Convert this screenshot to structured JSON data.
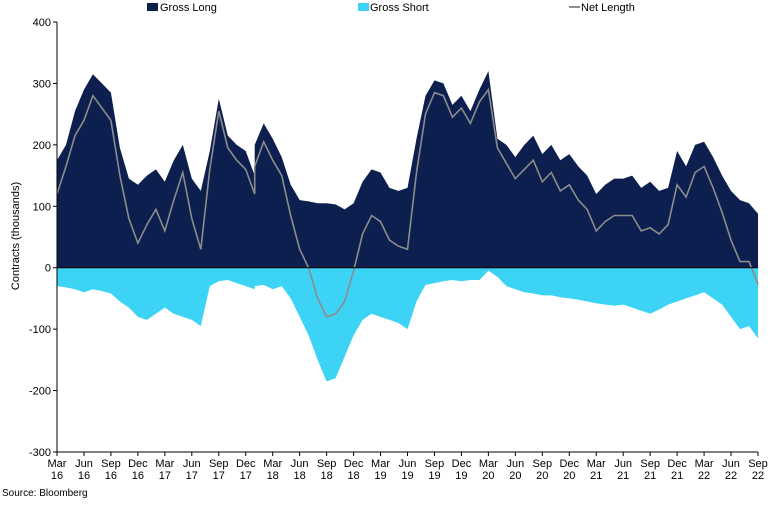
{
  "chart_data": {
    "type": "area",
    "ylabel": "Contracts (thousands)",
    "ylim": [
      -300,
      400
    ],
    "yticks": [
      -300,
      -200,
      -100,
      0,
      100,
      200,
      300,
      400
    ],
    "xticks": [
      {
        "line1": "Mar",
        "line2": "16"
      },
      {
        "line1": "Jun",
        "line2": "16"
      },
      {
        "line1": "Sep",
        "line2": "16"
      },
      {
        "line1": "Dec",
        "line2": "16"
      },
      {
        "line1": "Mar",
        "line2": "17"
      },
      {
        "line1": "Jun",
        "line2": "17"
      },
      {
        "line1": "Sep",
        "line2": "17"
      },
      {
        "line1": "Dec",
        "line2": "17"
      },
      {
        "line1": "Mar",
        "line2": "18"
      },
      {
        "line1": "Jun",
        "line2": "18"
      },
      {
        "line1": "Sep",
        "line2": "18"
      },
      {
        "line1": "Dec",
        "line2": "18"
      },
      {
        "line1": "Mar",
        "line2": "19"
      },
      {
        "line1": "Jun",
        "line2": "19"
      },
      {
        "line1": "Sep",
        "line2": "19"
      },
      {
        "line1": "Dec",
        "line2": "19"
      },
      {
        "line1": "Mar",
        "line2": "20"
      },
      {
        "line1": "Jun",
        "line2": "20"
      },
      {
        "line1": "Sep",
        "line2": "20"
      },
      {
        "line1": "Dec",
        "line2": "20"
      },
      {
        "line1": "Mar",
        "line2": "21"
      },
      {
        "line1": "Jun",
        "line2": "21"
      },
      {
        "line1": "Sep",
        "line2": "21"
      },
      {
        "line1": "Dec",
        "line2": "21"
      },
      {
        "line1": "Mar",
        "line2": "22"
      },
      {
        "line1": "Jun",
        "line2": "22"
      },
      {
        "line1": "Sep",
        "line2": "22"
      }
    ],
    "x_start": "2016-03",
    "x_end": "2022-09",
    "legend_position": "top",
    "grid": false,
    "series": [
      {
        "name": "Gross Long",
        "style": "area",
        "color": "#0c1f4f",
        "points": [
          [
            "2016-03",
            175
          ],
          [
            "2016-04",
            200
          ],
          [
            "2016-05",
            255
          ],
          [
            "2016-06",
            290
          ],
          [
            "2016-07",
            315
          ],
          [
            "2016-08",
            300
          ],
          [
            "2016-09",
            285
          ],
          [
            "2016-10",
            195
          ],
          [
            "2016-11",
            145
          ],
          [
            "2016-12",
            135
          ],
          [
            "2017-01",
            150
          ],
          [
            "2017-02",
            160
          ],
          [
            "2017-03",
            140
          ],
          [
            "2017-04",
            175
          ],
          [
            "2017-05",
            200
          ],
          [
            "2017-06",
            145
          ],
          [
            "2017-07",
            125
          ],
          [
            "2017-08",
            190
          ],
          [
            "2017-09",
            275
          ],
          [
            "2017-10",
            215
          ],
          [
            "2017-11",
            200
          ],
          [
            "2017-12",
            190
          ],
          [
            "2017-13",
            150
          ],
          [
            "2018-01",
            200
          ],
          [
            "2018-02",
            235
          ],
          [
            "2018-03",
            210
          ],
          [
            "2018-04",
            180
          ],
          [
            "2018-05",
            135
          ],
          [
            "2018-06",
            110
          ],
          [
            "2018-07",
            108
          ],
          [
            "2018-08",
            105
          ],
          [
            "2018-09",
            105
          ],
          [
            "2018-10",
            103
          ],
          [
            "2018-11",
            95
          ],
          [
            "2018-12",
            105
          ],
          [
            "2019-01",
            140
          ],
          [
            "2019-02",
            160
          ],
          [
            "2019-03",
            155
          ],
          [
            "2019-04",
            130
          ],
          [
            "2019-05",
            125
          ],
          [
            "2019-06",
            130
          ],
          [
            "2019-07",
            210
          ],
          [
            "2019-08",
            280
          ],
          [
            "2019-09",
            305
          ],
          [
            "2019-10",
            300
          ],
          [
            "2019-11",
            265
          ],
          [
            "2019-12",
            280
          ],
          [
            "2020-01",
            255
          ],
          [
            "2020-02",
            290
          ],
          [
            "2020-03",
            320
          ],
          [
            "2020-04",
            210
          ],
          [
            "2020-05",
            200
          ],
          [
            "2020-06",
            180
          ],
          [
            "2020-07",
            200
          ],
          [
            "2020-08",
            215
          ],
          [
            "2020-09",
            185
          ],
          [
            "2020-10",
            200
          ],
          [
            "2020-11",
            175
          ],
          [
            "2020-12",
            185
          ],
          [
            "2021-01",
            165
          ],
          [
            "2021-02",
            150
          ],
          [
            "2021-03",
            120
          ],
          [
            "2021-04",
            135
          ],
          [
            "2021-05",
            145
          ],
          [
            "2021-06",
            145
          ],
          [
            "2021-07",
            150
          ],
          [
            "2021-08",
            130
          ],
          [
            "2021-09",
            140
          ],
          [
            "2021-10",
            125
          ],
          [
            "2021-11",
            130
          ],
          [
            "2021-12",
            190
          ],
          [
            "2022-01",
            165
          ],
          [
            "2022-02",
            200
          ],
          [
            "2022-03",
            205
          ],
          [
            "2022-04",
            180
          ],
          [
            "2022-05",
            150
          ],
          [
            "2022-06",
            125
          ],
          [
            "2022-07",
            110
          ],
          [
            "2022-08",
            105
          ],
          [
            "2022-09",
            88
          ]
        ]
      },
      {
        "name": "Gross Short",
        "style": "area",
        "color": "#3dd3f5",
        "points": [
          [
            "2016-03",
            -30
          ],
          [
            "2016-04",
            -32
          ],
          [
            "2016-05",
            -35
          ],
          [
            "2016-06",
            -40
          ],
          [
            "2016-07",
            -35
          ],
          [
            "2016-08",
            -38
          ],
          [
            "2016-09",
            -42
          ],
          [
            "2016-10",
            -55
          ],
          [
            "2016-11",
            -65
          ],
          [
            "2016-12",
            -80
          ],
          [
            "2017-01",
            -85
          ],
          [
            "2017-02",
            -75
          ],
          [
            "2017-03",
            -65
          ],
          [
            "2017-04",
            -75
          ],
          [
            "2017-05",
            -80
          ],
          [
            "2017-06",
            -85
          ],
          [
            "2017-07",
            -95
          ],
          [
            "2017-08",
            -30
          ],
          [
            "2017-09",
            -22
          ],
          [
            "2017-10",
            -20
          ],
          [
            "2017-11",
            -25
          ],
          [
            "2017-12",
            -30
          ],
          [
            "2017-13",
            -35
          ],
          [
            "2018-01",
            -30
          ],
          [
            "2018-02",
            -28
          ],
          [
            "2018-03",
            -35
          ],
          [
            "2018-04",
            -30
          ],
          [
            "2018-05",
            -50
          ],
          [
            "2018-06",
            -80
          ],
          [
            "2018-07",
            -110
          ],
          [
            "2018-08",
            -150
          ],
          [
            "2018-09",
            -185
          ],
          [
            "2018-10",
            -180
          ],
          [
            "2018-11",
            -145
          ],
          [
            "2018-12",
            -110
          ],
          [
            "2019-01",
            -85
          ],
          [
            "2019-02",
            -75
          ],
          [
            "2019-03",
            -80
          ],
          [
            "2019-04",
            -85
          ],
          [
            "2019-05",
            -90
          ],
          [
            "2019-06",
            -100
          ],
          [
            "2019-07",
            -55
          ],
          [
            "2019-08",
            -28
          ],
          [
            "2019-09",
            -25
          ],
          [
            "2019-10",
            -22
          ],
          [
            "2019-11",
            -20
          ],
          [
            "2019-12",
            -22
          ],
          [
            "2020-01",
            -20
          ],
          [
            "2020-02",
            -20
          ],
          [
            "2020-03",
            -5
          ],
          [
            "2020-04",
            -15
          ],
          [
            "2020-05",
            -30
          ],
          [
            "2020-06",
            -35
          ],
          [
            "2020-07",
            -40
          ],
          [
            "2020-08",
            -42
          ],
          [
            "2020-09",
            -45
          ],
          [
            "2020-10",
            -45
          ],
          [
            "2020-11",
            -48
          ],
          [
            "2020-12",
            -50
          ],
          [
            "2021-01",
            -52
          ],
          [
            "2021-02",
            -55
          ],
          [
            "2021-03",
            -58
          ],
          [
            "2021-04",
            -60
          ],
          [
            "2021-05",
            -62
          ],
          [
            "2021-06",
            -60
          ],
          [
            "2021-07",
            -65
          ],
          [
            "2021-08",
            -70
          ],
          [
            "2021-09",
            -75
          ],
          [
            "2021-10",
            -68
          ],
          [
            "2021-11",
            -60
          ],
          [
            "2021-12",
            -55
          ],
          [
            "2022-01",
            -50
          ],
          [
            "2022-02",
            -45
          ],
          [
            "2022-03",
            -40
          ],
          [
            "2022-04",
            -50
          ],
          [
            "2022-05",
            -60
          ],
          [
            "2022-06",
            -80
          ],
          [
            "2022-07",
            -100
          ],
          [
            "2022-08",
            -95
          ],
          [
            "2022-09",
            -115
          ]
        ]
      },
      {
        "name": "Net Length",
        "style": "line",
        "color": "#8c8c8c",
        "points": [
          [
            "2016-03",
            120
          ],
          [
            "2016-04",
            165
          ],
          [
            "2016-05",
            215
          ],
          [
            "2016-06",
            240
          ],
          [
            "2016-07",
            280
          ],
          [
            "2016-08",
            260
          ],
          [
            "2016-09",
            240
          ],
          [
            "2016-10",
            150
          ],
          [
            "2016-11",
            80
          ],
          [
            "2016-12",
            40
          ],
          [
            "2017-01",
            70
          ],
          [
            "2017-02",
            95
          ],
          [
            "2017-03",
            60
          ],
          [
            "2017-04",
            110
          ],
          [
            "2017-05",
            155
          ],
          [
            "2017-06",
            80
          ],
          [
            "2017-07",
            30
          ],
          [
            "2017-08",
            160
          ],
          [
            "2017-09",
            255
          ],
          [
            "2017-10",
            195
          ],
          [
            "2017-11",
            175
          ],
          [
            "2017-12",
            160
          ],
          [
            "2017-13",
            120
          ],
          [
            "2018-01",
            165
          ],
          [
            "2018-02",
            205
          ],
          [
            "2018-03",
            175
          ],
          [
            "2018-04",
            150
          ],
          [
            "2018-05",
            85
          ],
          [
            "2018-06",
            30
          ],
          [
            "2018-07",
            0
          ],
          [
            "2018-08",
            -50
          ],
          [
            "2018-09",
            -80
          ],
          [
            "2018-10",
            -75
          ],
          [
            "2018-11",
            -55
          ],
          [
            "2018-12",
            -5
          ],
          [
            "2019-01",
            55
          ],
          [
            "2019-02",
            85
          ],
          [
            "2019-03",
            75
          ],
          [
            "2019-04",
            45
          ],
          [
            "2019-05",
            35
          ],
          [
            "2019-06",
            30
          ],
          [
            "2019-07",
            155
          ],
          [
            "2019-08",
            250
          ],
          [
            "2019-09",
            285
          ],
          [
            "2019-10",
            280
          ],
          [
            "2019-11",
            245
          ],
          [
            "2019-12",
            260
          ],
          [
            "2020-01",
            235
          ],
          [
            "2020-02",
            270
          ],
          [
            "2020-03",
            290
          ],
          [
            "2020-04",
            195
          ],
          [
            "2020-05",
            170
          ],
          [
            "2020-06",
            145
          ],
          [
            "2020-07",
            160
          ],
          [
            "2020-08",
            175
          ],
          [
            "2020-09",
            140
          ],
          [
            "2020-10",
            155
          ],
          [
            "2020-11",
            125
          ],
          [
            "2020-12",
            135
          ],
          [
            "2021-01",
            110
          ],
          [
            "2021-02",
            95
          ],
          [
            "2021-03",
            60
          ],
          [
            "2021-04",
            75
          ],
          [
            "2021-05",
            85
          ],
          [
            "2021-06",
            85
          ],
          [
            "2021-07",
            85
          ],
          [
            "2021-08",
            60
          ],
          [
            "2021-09",
            65
          ],
          [
            "2021-10",
            55
          ],
          [
            "2021-11",
            70
          ],
          [
            "2021-12",
            135
          ],
          [
            "2022-01",
            115
          ],
          [
            "2022-02",
            155
          ],
          [
            "2022-03",
            165
          ],
          [
            "2022-04",
            130
          ],
          [
            "2022-05",
            90
          ],
          [
            "2022-06",
            45
          ],
          [
            "2022-07",
            10
          ],
          [
            "2022-08",
            10
          ],
          [
            "2022-09",
            -27
          ]
        ]
      }
    ]
  },
  "source": "Source: Bloomberg"
}
